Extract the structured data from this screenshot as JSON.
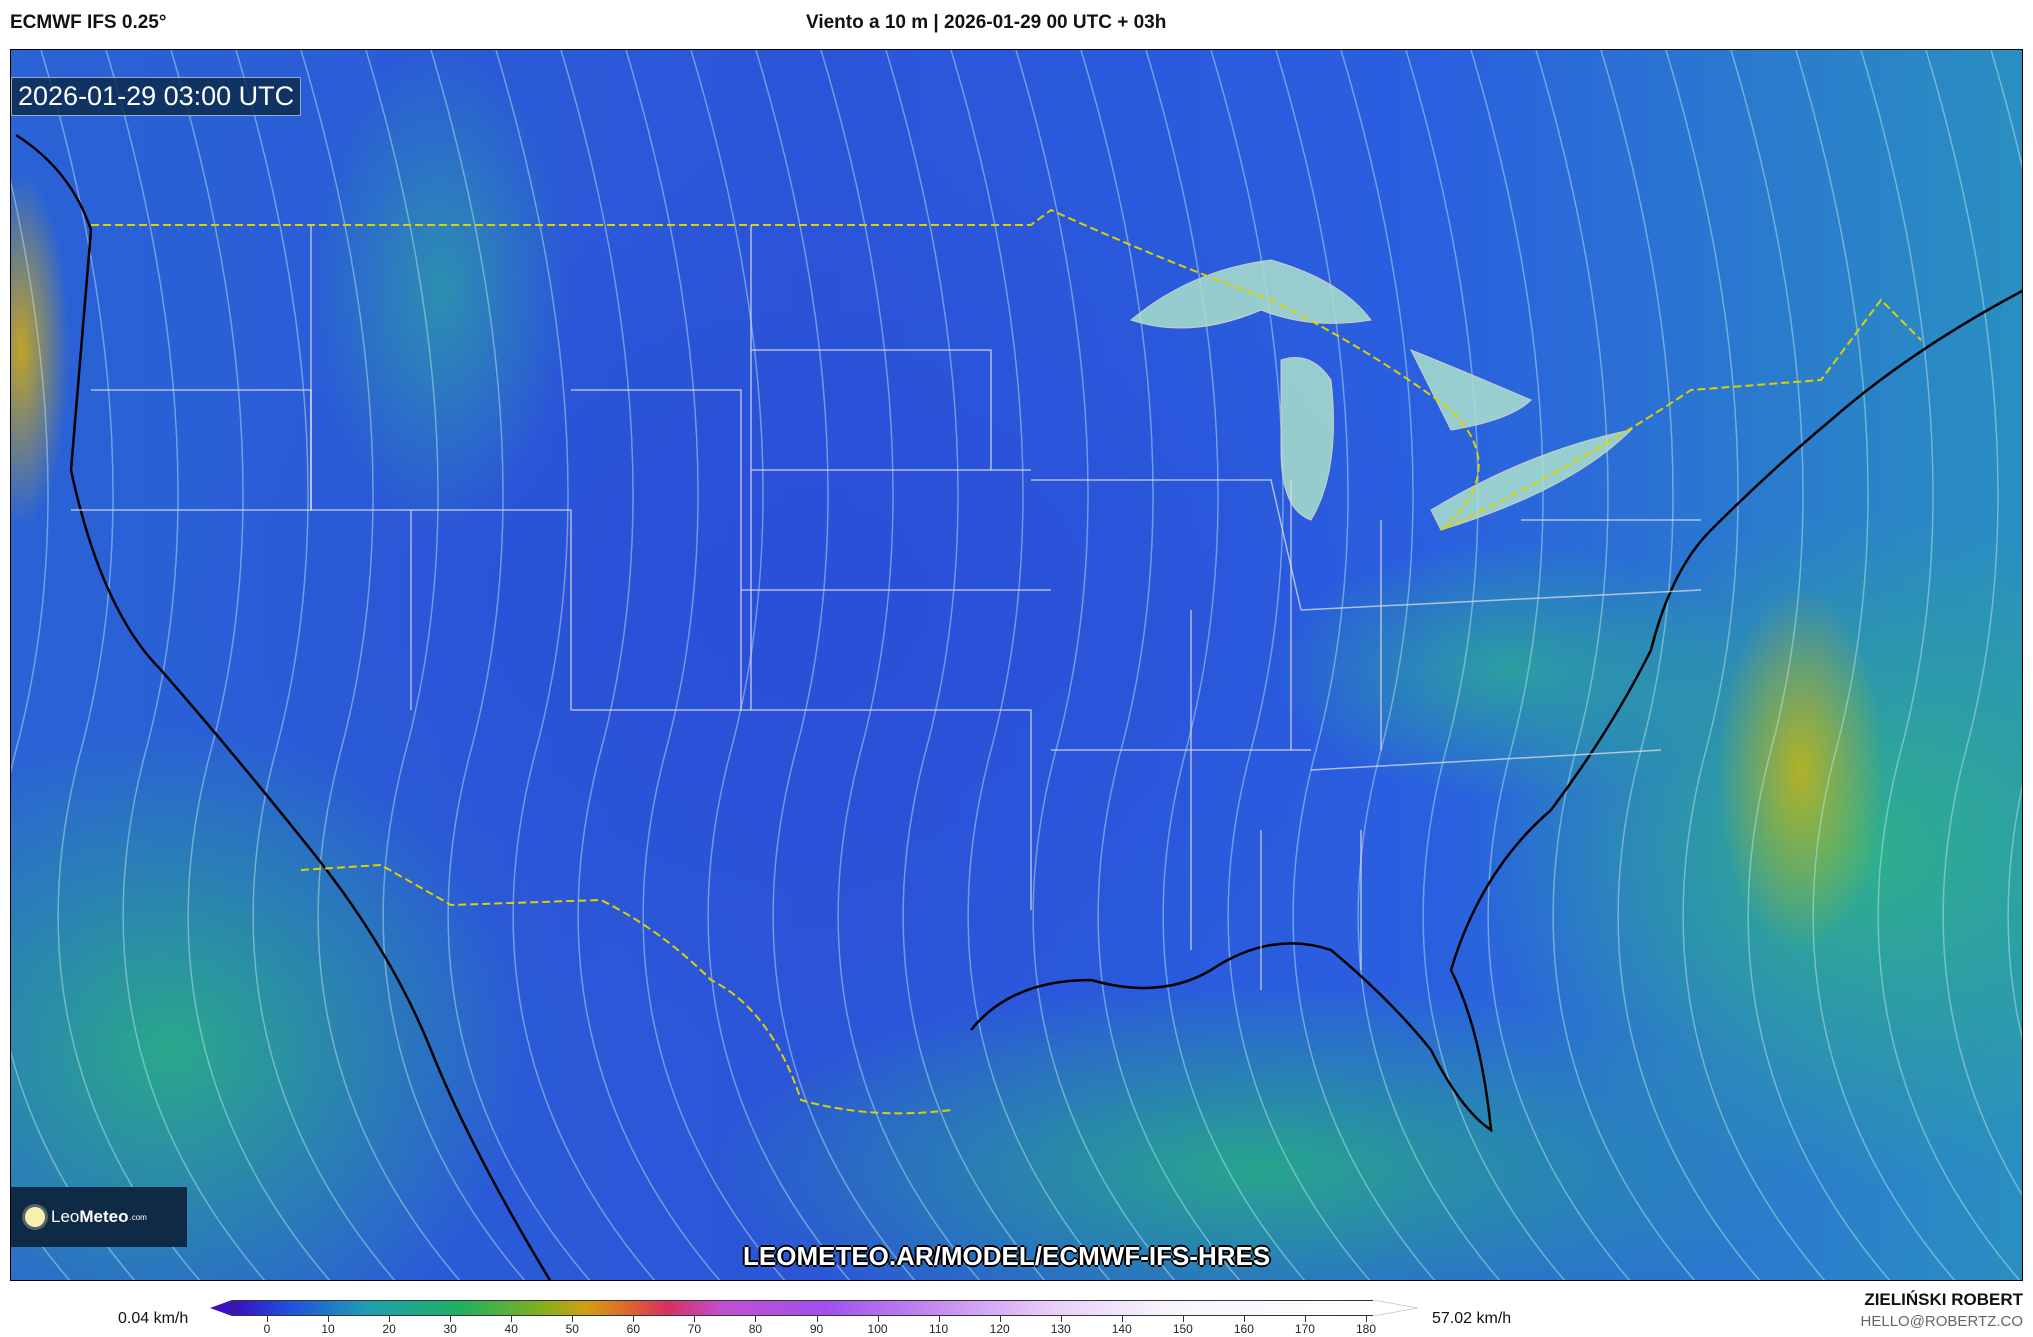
{
  "header": {
    "model": "ECMWF IFS 0.25°",
    "title": "Viento a 10 m | 2026-01-29 00 UTC + 03h"
  },
  "map": {
    "valid_time": "2026-01-29 03:00 UTC",
    "watermark_url": "LEOMETEO.AR/MODEL/ECMWF-IFS-HRES",
    "logo": {
      "brand_light": "Leo",
      "brand_bold": "Meteo",
      "suffix": ".com"
    },
    "land_color": "#2a55d8",
    "ocean_color": "#2aa88a",
    "max_wind_color": "#c8b414"
  },
  "colorbar": {
    "min_label": "0.04 km/h",
    "max_label": "57.02 km/h",
    "unit": "km/h",
    "ticks": [
      "0",
      "10",
      "20",
      "30",
      "40",
      "50",
      "60",
      "70",
      "80",
      "90",
      "100",
      "110",
      "120",
      "130",
      "140",
      "150",
      "160",
      "170",
      "180"
    ]
  },
  "credits": {
    "author": "ZIELIŃSKI ROBERT",
    "email": "HELLO@ROBERTZ.CO"
  }
}
